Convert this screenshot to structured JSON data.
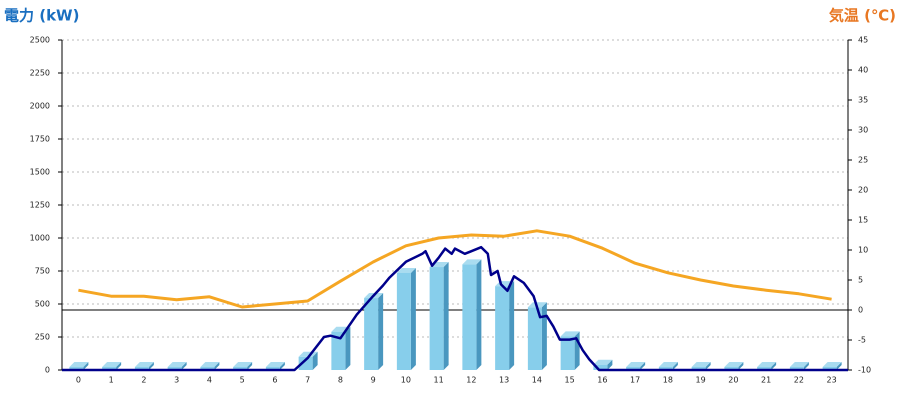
{
  "chart_data": {
    "type": "bar",
    "ylabel": "電力 (kW)",
    "y2label": "気温 (℃)",
    "categories": [
      "0",
      "1",
      "2",
      "3",
      "4",
      "5",
      "6",
      "7",
      "8",
      "9",
      "10",
      "11",
      "12",
      "13",
      "14",
      "15",
      "16",
      "17",
      "18",
      "19",
      "20",
      "21",
      "22",
      "23"
    ],
    "series": [
      {
        "type": "bar",
        "color": "#87ceeb",
        "values": [
          0,
          0,
          0,
          0,
          0,
          0,
          0,
          100,
          290,
          545,
          735,
          780,
          800,
          635,
          475,
          255,
          40,
          0,
          0,
          0,
          0,
          0,
          0,
          0
        ]
      },
      {
        "type": "line",
        "color": "#00008b",
        "x": [
          -0.5,
          6.6,
          7.0,
          7.5,
          7.7,
          8.0,
          8.5,
          9.0,
          9.3,
          9.5,
          10.0,
          10.5,
          10.6,
          10.8,
          11.0,
          11.2,
          11.4,
          11.5,
          11.8,
          12.0,
          12.3,
          12.5,
          12.6,
          12.8,
          12.9,
          13.1,
          13.3,
          13.6,
          13.9,
          14.1,
          14.3,
          14.5,
          14.7,
          15.0,
          15.2,
          15.4,
          15.6,
          15.9,
          23.5
        ],
        "values": [
          0,
          0,
          90,
          250,
          260,
          240,
          420,
          560,
          640,
          700,
          820,
          880,
          900,
          790,
          850,
          920,
          880,
          920,
          880,
          900,
          930,
          880,
          720,
          750,
          650,
          600,
          710,
          660,
          560,
          400,
          410,
          330,
          230,
          230,
          240,
          150,
          80,
          0,
          0
        ]
      },
      {
        "type": "line",
        "axis": "y2",
        "color": "#f5a623",
        "values": [
          3.3,
          2.3,
          2.3,
          1.7,
          2.2,
          0.5,
          1,
          1.5,
          4.8,
          8,
          10.7,
          12,
          12.5,
          12.3,
          13.2,
          12.3,
          10.3,
          7.8,
          6.2,
          5,
          4,
          3.3,
          2.7,
          1.8
        ]
      }
    ],
    "ylim": [
      0,
      2500
    ],
    "yticks": [
      0,
      250,
      500,
      750,
      1000,
      1250,
      1500,
      1750,
      2000,
      2250,
      2500
    ],
    "y2lim": [
      -10,
      45
    ],
    "y2ticks": [
      -10,
      -5,
      0,
      5,
      10,
      15,
      20,
      25,
      30,
      35,
      40,
      45
    ],
    "grid": true
  }
}
